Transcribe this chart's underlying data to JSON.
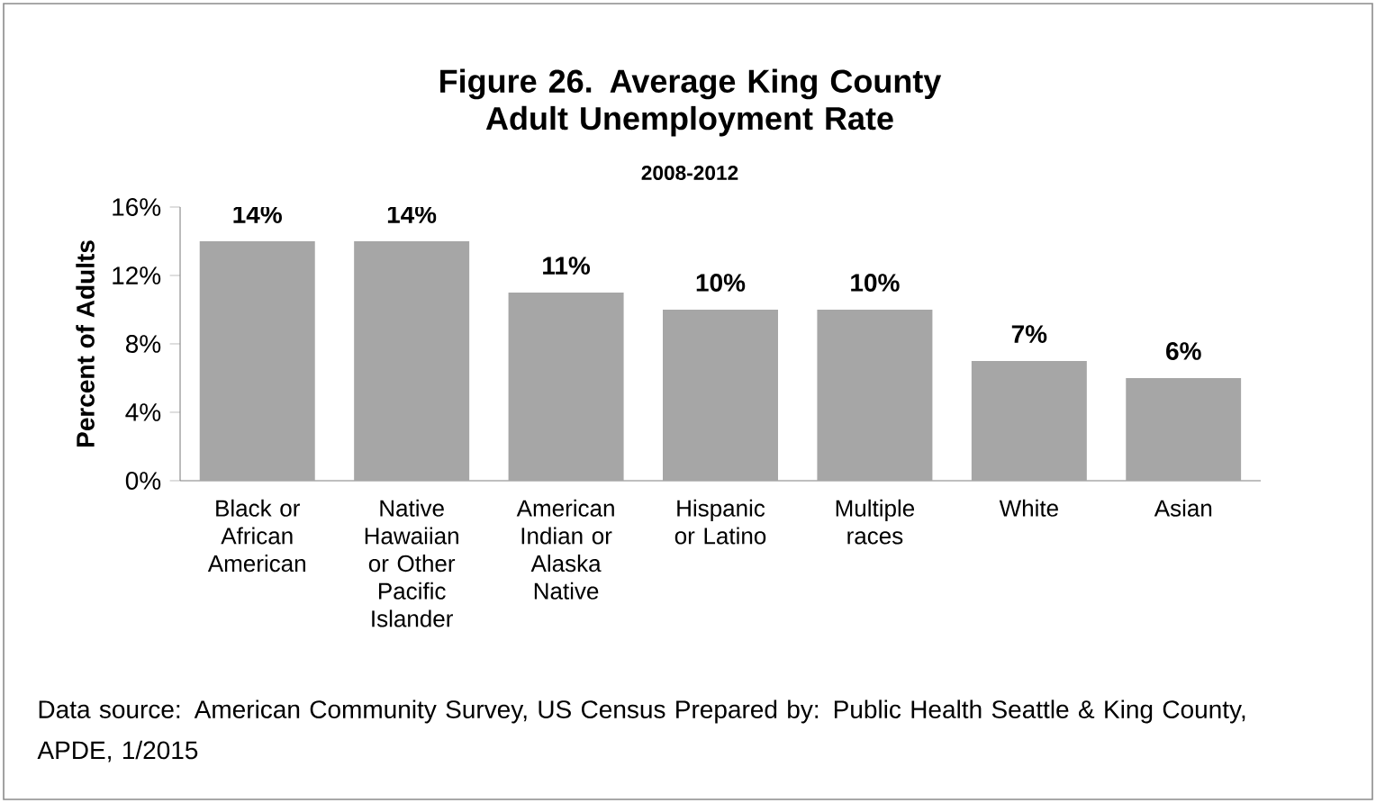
{
  "chart_data": {
    "type": "bar",
    "title": "Figure 26. Average King County Adult Unemployment Rate",
    "subtitle": "2008-2012",
    "ylabel": "Percent of Adults",
    "categories": [
      "Black or African American",
      "Native Hawaiian or Other Pacific Islander",
      "American Indian or Alaska Native",
      "Hispanic or Latino",
      "Multiple races",
      "White",
      "Asian"
    ],
    "values": [
      14,
      14,
      11,
      10,
      10,
      7,
      6
    ],
    "value_labels": [
      "14%",
      "14%",
      "11%",
      "10%",
      "10%",
      "7%",
      "6%"
    ],
    "color": "#a6a6a6",
    "ylim": [
      0,
      16
    ],
    "yticks": [
      {
        "value": 0,
        "label": "0%"
      },
      {
        "value": 4,
        "label": "4%"
      },
      {
        "value": 8,
        "label": "8%"
      },
      {
        "value": 12,
        "label": "12%"
      },
      {
        "value": 16,
        "label": "16%"
      }
    ],
    "annotations": [
      "Data source: American Community Survey, US Census Prepared by: Public Health Seattle & King County, APDE, 1/2015"
    ]
  }
}
